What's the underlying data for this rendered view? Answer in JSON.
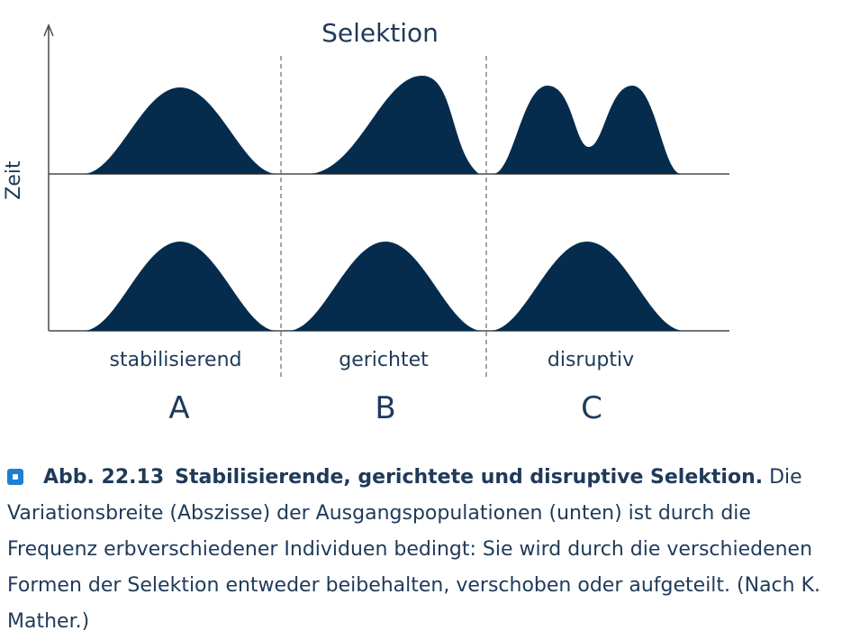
{
  "colors": {
    "curve_fill": "#052c4d",
    "axis": "#4a4a4a",
    "text": "#1f3a5a",
    "icon": "#1e7fd0"
  },
  "diagram": {
    "title": "Selektion",
    "y_axis_label": "Zeit",
    "panels": [
      {
        "label": "stabilisierend",
        "letter": "A"
      },
      {
        "label": "gerichtet",
        "letter": "B"
      },
      {
        "label": "disruptiv",
        "letter": "C"
      }
    ]
  },
  "caption": {
    "icon": "figure-square-icon",
    "label": "Abb. 22.13",
    "title": "Stabilisierende, gerichtete und disruptive Selektion.",
    "text": "Die Variationsbreite (Abszisse) der Ausgangspopulationen (unten) ist durch die Frequenz erbverschiedener Individuen bedingt: Sie wird durch die verschiedenen Formen der Selektion entweder beibehalten, verschoben oder aufgeteilt. (Nach K. Mather.)"
  }
}
